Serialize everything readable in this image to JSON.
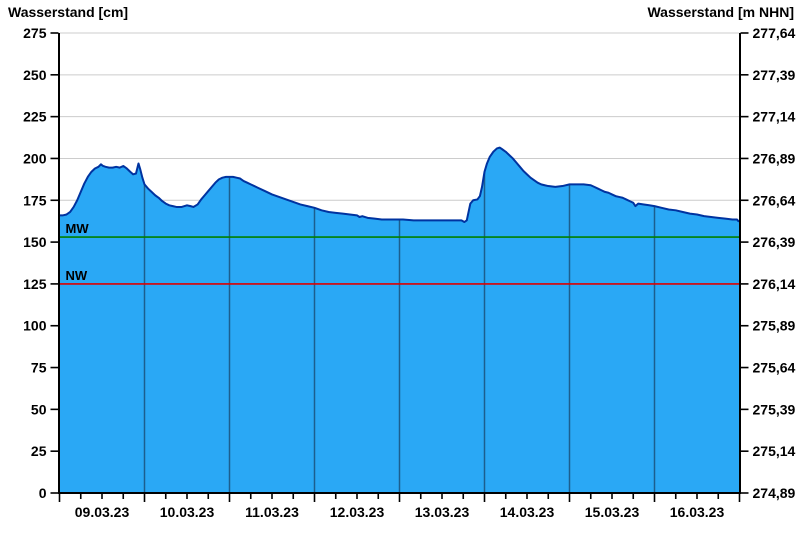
{
  "titles": {
    "left": "Wasserstand [cm]",
    "right": "Wasserstand [m NHN]"
  },
  "chart_data": {
    "type": "area",
    "title_left": "Wasserstand [cm]",
    "title_right": "Wasserstand [m NHN]",
    "x_unit": "hours_since_09.03.23_00:00",
    "x_days": 8,
    "x_minor_ticks_per_day": 4,
    "x_tick_labels": [
      "09.03.23",
      "10.03.23",
      "11.03.23",
      "12.03.23",
      "13.03.23",
      "14.03.23",
      "15.03.23",
      "16.03.23"
    ],
    "y_left_axis": {
      "min": 0,
      "max": 275,
      "step": 25,
      "tick_labels_bottom_to_top": [
        "0",
        "25",
        "50",
        "75",
        "100",
        "125",
        "150",
        "175",
        "200",
        "225",
        "250",
        "275"
      ]
    },
    "y_right_axis": {
      "tick_labels_bottom_to_top": [
        "274,89",
        "275,14",
        "275,39",
        "275,64",
        "275,89",
        "276,14",
        "276,39",
        "276,64",
        "276,89",
        "277,14",
        "277,39",
        "277,64"
      ]
    },
    "reference_lines": [
      {
        "name": "MW",
        "value_cm": 153,
        "color": "#008000"
      },
      {
        "name": "NW",
        "value_cm": 125,
        "color": "#dd0000"
      }
    ],
    "colors": {
      "fill": "#2aa8f5",
      "line": "#0033a0",
      "grid": "#cccccc",
      "day_line": "#1c5e8e",
      "axis": "#000000",
      "text": "#000000"
    },
    "series": [
      {
        "name": "Wasserstand",
        "unit": "cm",
        "points": [
          [
            0,
            166
          ],
          [
            1,
            166
          ],
          [
            2,
            166.5
          ],
          [
            3,
            168
          ],
          [
            4,
            171
          ],
          [
            5,
            175
          ],
          [
            6,
            180
          ],
          [
            7,
            185
          ],
          [
            8,
            189
          ],
          [
            9,
            192
          ],
          [
            10,
            194
          ],
          [
            11,
            195
          ],
          [
            11.7,
            196.5
          ],
          [
            12.3,
            195.5
          ],
          [
            13,
            195
          ],
          [
            14,
            194.5
          ],
          [
            15,
            194.5
          ],
          [
            16,
            195
          ],
          [
            17,
            194.5
          ],
          [
            18,
            195.5
          ],
          [
            19,
            194
          ],
          [
            20,
            192
          ],
          [
            20.8,
            190.5
          ],
          [
            21.6,
            191
          ],
          [
            22.3,
            197
          ],
          [
            22.8,
            193.5
          ],
          [
            23.4,
            188.5
          ],
          [
            24,
            184.5
          ],
          [
            25,
            182
          ],
          [
            26,
            180
          ],
          [
            27,
            178
          ],
          [
            28,
            176.5
          ],
          [
            29,
            174.5
          ],
          [
            30,
            173
          ],
          [
            31,
            172
          ],
          [
            32,
            171.5
          ],
          [
            33,
            171
          ],
          [
            34.5,
            171
          ],
          [
            36,
            172
          ],
          [
            37,
            171.5
          ],
          [
            37.8,
            171
          ],
          [
            39,
            172.5
          ],
          [
            40,
            175.5
          ],
          [
            41,
            178
          ],
          [
            42,
            180.5
          ],
          [
            43,
            183
          ],
          [
            44,
            185.5
          ],
          [
            45,
            187.5
          ],
          [
            46,
            188.5
          ],
          [
            47,
            189
          ],
          [
            49,
            189
          ],
          [
            50,
            188.5
          ],
          [
            51,
            188
          ],
          [
            52,
            186.5
          ],
          [
            53,
            185.5
          ],
          [
            54,
            184.5
          ],
          [
            56,
            182.5
          ],
          [
            58,
            180.5
          ],
          [
            60,
            178.5
          ],
          [
            62,
            177
          ],
          [
            64,
            175.5
          ],
          [
            66,
            174
          ],
          [
            68,
            172.5
          ],
          [
            70,
            171.5
          ],
          [
            72,
            170.5
          ],
          [
            74,
            169
          ],
          [
            76,
            168
          ],
          [
            78,
            167.5
          ],
          [
            80,
            167
          ],
          [
            82,
            166.5
          ],
          [
            84,
            166
          ],
          [
            84.7,
            165
          ],
          [
            85.5,
            165.5
          ],
          [
            87,
            164.5
          ],
          [
            89,
            164
          ],
          [
            91,
            163.5
          ],
          [
            94,
            163.5
          ],
          [
            97,
            163.5
          ],
          [
            100,
            163
          ],
          [
            104,
            163
          ],
          [
            108,
            163
          ],
          [
            112,
            163
          ],
          [
            113.5,
            163
          ],
          [
            114.3,
            162
          ],
          [
            115,
            163
          ],
          [
            115.5,
            168
          ],
          [
            116,
            173
          ],
          [
            116.8,
            175
          ],
          [
            118,
            175.5
          ],
          [
            118.7,
            177.5
          ],
          [
            119.3,
            183
          ],
          [
            120,
            192
          ],
          [
            120.7,
            197
          ],
          [
            121.5,
            201
          ],
          [
            122.5,
            204
          ],
          [
            123.5,
            206
          ],
          [
            124.3,
            206.5
          ],
          [
            125,
            205.5
          ],
          [
            126,
            204
          ],
          [
            127,
            202
          ],
          [
            128,
            200
          ],
          [
            129,
            197.5
          ],
          [
            130,
            195
          ],
          [
            131,
            192.5
          ],
          [
            132,
            190.5
          ],
          [
            133,
            188.5
          ],
          [
            134,
            187
          ],
          [
            135,
            185.5
          ],
          [
            136,
            184.5
          ],
          [
            137,
            184
          ],
          [
            138,
            183.5
          ],
          [
            140,
            183
          ],
          [
            142,
            183.5
          ],
          [
            144,
            184.5
          ],
          [
            146,
            184.5
          ],
          [
            148,
            184.5
          ],
          [
            150,
            184
          ],
          [
            151,
            183
          ],
          [
            152,
            182
          ],
          [
            153,
            181
          ],
          [
            154,
            180
          ],
          [
            155,
            179.5
          ],
          [
            156,
            178.5
          ],
          [
            157,
            177.5
          ],
          [
            158,
            177
          ],
          [
            159,
            176.5
          ],
          [
            160,
            175.5
          ],
          [
            161,
            174.5
          ],
          [
            162,
            173.5
          ],
          [
            162.6,
            171.5
          ],
          [
            163.4,
            173
          ],
          [
            165,
            172.5
          ],
          [
            166.5,
            172
          ],
          [
            168,
            171.5
          ],
          [
            170,
            170.5
          ],
          [
            172,
            169.5
          ],
          [
            174,
            169
          ],
          [
            176,
            168
          ],
          [
            178,
            167
          ],
          [
            180,
            166.5
          ],
          [
            182,
            165.5
          ],
          [
            184,
            165
          ],
          [
            186,
            164.5
          ],
          [
            188,
            164
          ],
          [
            190,
            163.5
          ],
          [
            191.3,
            163.5
          ],
          [
            191.7,
            162.5
          ],
          [
            192,
            162.5
          ]
        ]
      }
    ]
  }
}
